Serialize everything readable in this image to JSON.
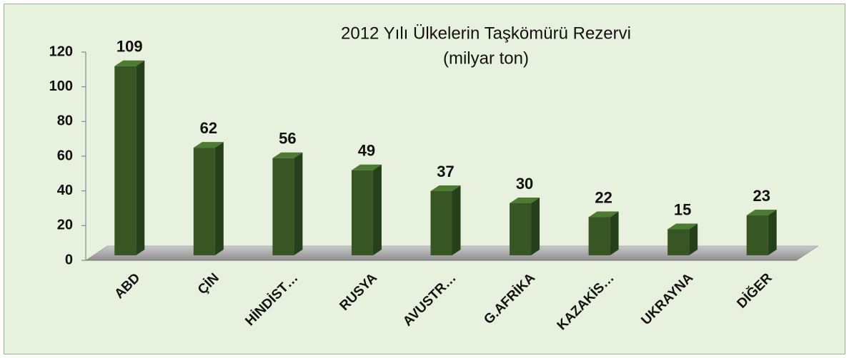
{
  "chart_data": {
    "type": "bar3d",
    "title": "2012  Yılı Ülkelerin Taşkömürü Rezervi",
    "subtitle": "(milyar ton)",
    "categories": [
      "ABD",
      "ÇİN",
      "HİNDİST…",
      "RUSYA",
      "AVUSTR…",
      "G.AFRİKA",
      "KAZAKİS…",
      "UKRAYNA",
      "DİĞER"
    ],
    "values": [
      109,
      62,
      56,
      49,
      37,
      30,
      22,
      15,
      23
    ],
    "color": "#375623",
    "ylim": [
      0,
      120
    ],
    "yticks": [
      0,
      20,
      40,
      60,
      80,
      100,
      120
    ]
  }
}
